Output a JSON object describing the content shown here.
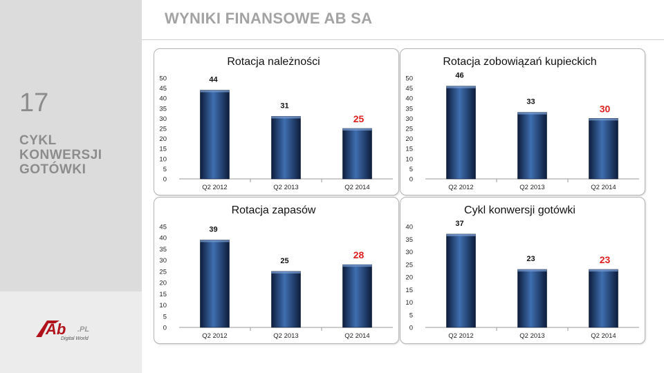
{
  "slide": {
    "number": "17",
    "section_lines": [
      "CYKL",
      "KONWERSJI",
      "GOTÓWKI"
    ],
    "header_title": "WYNIKI FINANSOWE AB SA",
    "logo_text": "Ab",
    "logo_suffix": ".PL",
    "logo_tagline": "Digital World"
  },
  "colors": {
    "bar_dark": "#0d1d3c",
    "bar_light": "#3f6fb0",
    "highlight": "#e02020",
    "logo_red": "#b0121b"
  },
  "chart_data": [
    {
      "type": "bar",
      "title": "Rotacja należności",
      "categories": [
        "Q2 2012",
        "Q2 2013",
        "Q2 2014"
      ],
      "values": [
        44,
        31,
        25
      ],
      "labels": [
        "44",
        "31",
        "25"
      ],
      "ylim": [
        0,
        50
      ],
      "yticks": [
        "0",
        "5",
        "10",
        "15",
        "20",
        "25",
        "30",
        "35",
        "40",
        "45",
        "50"
      ],
      "highlight_last": true,
      "grid": false
    },
    {
      "type": "bar",
      "title": "Rotacja zobowiązań kupieckich",
      "categories": [
        "Q2 2012",
        "Q2 2013",
        "Q2 2014"
      ],
      "values": [
        46,
        33,
        30
      ],
      "labels": [
        "46",
        "33",
        "30"
      ],
      "ylim": [
        0,
        50
      ],
      "yticks": [
        "0",
        "5",
        "10",
        "15",
        "20",
        "25",
        "30",
        "35",
        "40",
        "45",
        "50"
      ],
      "highlight_last": true,
      "grid": false
    },
    {
      "type": "bar",
      "title": "Rotacja zapasów",
      "categories": [
        "Q2 2012",
        "Q2 2013",
        "Q2 2014"
      ],
      "values": [
        39,
        25,
        28
      ],
      "labels": [
        "39",
        "25",
        "28"
      ],
      "ylim": [
        0,
        45
      ],
      "yticks": [
        "0",
        "5",
        "10",
        "15",
        "20",
        "25",
        "30",
        "35",
        "40",
        "45"
      ],
      "highlight_last": true,
      "grid": false
    },
    {
      "type": "bar",
      "title": "Cykl konwersji gotówki",
      "categories": [
        "Q2 2012",
        "Q2 2013",
        "Q2 2014"
      ],
      "values": [
        37,
        23,
        23
      ],
      "labels": [
        "37",
        "23",
        "23"
      ],
      "ylim": [
        0,
        40
      ],
      "yticks": [
        "0",
        "5",
        "10",
        "15",
        "20",
        "25",
        "30",
        "35",
        "40"
      ],
      "highlight_last": true,
      "grid": false
    }
  ]
}
